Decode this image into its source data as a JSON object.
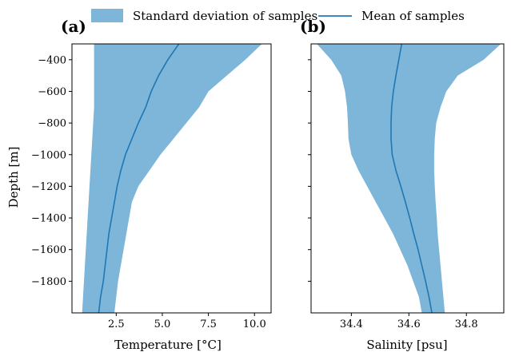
{
  "legend": {
    "placement": "top-center",
    "items": [
      {
        "label": "Standard deviation of samples",
        "kind": "patch"
      },
      {
        "label": "Mean of samples",
        "kind": "line"
      }
    ]
  },
  "colors": {
    "band": "#7eb6da",
    "mean": "#1f77b4",
    "axis": "#000000",
    "background": "#ffffff"
  },
  "chart_data": [
    {
      "type": "area",
      "panel_label": "(a)",
      "xlabel": "Temperature [°C]",
      "ylabel": "Depth [m]",
      "xlim": [
        0.1,
        10.9
      ],
      "ylim": [
        -2000,
        -300
      ],
      "grid": false,
      "xticks": [
        {
          "value": 2.5,
          "label": "2.5"
        },
        {
          "value": 5.0,
          "label": "5.0"
        },
        {
          "value": 7.5,
          "label": "7.5"
        },
        {
          "value": 10.0,
          "label": "10.0"
        }
      ],
      "yticks": [
        {
          "value": -400,
          "label": "−400"
        },
        {
          "value": -600,
          "label": "−600"
        },
        {
          "value": -800,
          "label": "−800"
        },
        {
          "value": -1000,
          "label": "−1000"
        },
        {
          "value": -1200,
          "label": "−1200"
        },
        {
          "value": -1400,
          "label": "−1400"
        },
        {
          "value": -1600,
          "label": "−1600"
        },
        {
          "value": -1800,
          "label": "−1800"
        }
      ],
      "depth": [
        -300,
        -400,
        -500,
        -600,
        -700,
        -800,
        -900,
        -1000,
        -1100,
        -1200,
        -1300,
        -1400,
        -1500,
        -1600,
        -1700,
        -1800,
        -1900,
        -2000
      ],
      "series": [
        {
          "name": "Mean of samples",
          "values": [
            5.9,
            5.3,
            4.8,
            4.4,
            4.1,
            3.7,
            3.35,
            3.0,
            2.75,
            2.55,
            2.4,
            2.25,
            2.1,
            2.0,
            1.9,
            1.8,
            1.65,
            1.55
          ]
        },
        {
          "name": "Standard deviation of samples",
          "lower": [
            1.3,
            1.3,
            1.3,
            1.3,
            1.3,
            1.25,
            1.2,
            1.15,
            1.1,
            1.05,
            1.0,
            0.95,
            0.9,
            0.85,
            0.8,
            0.75,
            0.7,
            0.65
          ],
          "upper": [
            10.4,
            9.5,
            8.5,
            7.5,
            7.0,
            6.3,
            5.6,
            4.9,
            4.3,
            3.7,
            3.35,
            3.2,
            3.05,
            2.9,
            2.75,
            2.6,
            2.5,
            2.4
          ]
        }
      ]
    },
    {
      "type": "area",
      "panel_label": "(b)",
      "xlabel": "Salinity [psu]",
      "ylabel": "",
      "xlim": [
        34.26,
        34.93
      ],
      "ylim": [
        -2000,
        -300
      ],
      "grid": false,
      "xticks": [
        {
          "value": 34.4,
          "label": "34.4"
        },
        {
          "value": 34.6,
          "label": "34.6"
        },
        {
          "value": 34.8,
          "label": "34.8"
        }
      ],
      "yticks": [
        {
          "value": -400,
          "label": ""
        },
        {
          "value": -600,
          "label": ""
        },
        {
          "value": -800,
          "label": ""
        },
        {
          "value": -1000,
          "label": ""
        },
        {
          "value": -1200,
          "label": ""
        },
        {
          "value": -1400,
          "label": ""
        },
        {
          "value": -1600,
          "label": ""
        },
        {
          "value": -1800,
          "label": ""
        }
      ],
      "depth": [
        -300,
        -400,
        -500,
        -600,
        -700,
        -800,
        -900,
        -1000,
        -1100,
        -1200,
        -1300,
        -1400,
        -1500,
        -1600,
        -1700,
        -1800,
        -1900,
        -2000
      ],
      "series": [
        {
          "name": "Mean of samples",
          "values": [
            34.575,
            34.565,
            34.555,
            34.546,
            34.54,
            34.538,
            34.538,
            34.542,
            34.555,
            34.572,
            34.588,
            34.603,
            34.617,
            34.632,
            34.645,
            34.658,
            34.67,
            34.68
          ]
        },
        {
          "name": "Standard deviation of samples",
          "lower": [
            34.28,
            34.33,
            34.365,
            34.378,
            34.385,
            34.388,
            34.39,
            34.4,
            34.425,
            34.455,
            34.485,
            34.515,
            34.545,
            34.57,
            34.595,
            34.615,
            34.635,
            34.645
          ],
          "upper": [
            34.92,
            34.86,
            34.77,
            34.73,
            34.71,
            34.695,
            34.69,
            34.688,
            34.688,
            34.69,
            34.693,
            34.697,
            34.7,
            34.705,
            34.71,
            34.715,
            34.72,
            34.725
          ]
        }
      ]
    }
  ]
}
